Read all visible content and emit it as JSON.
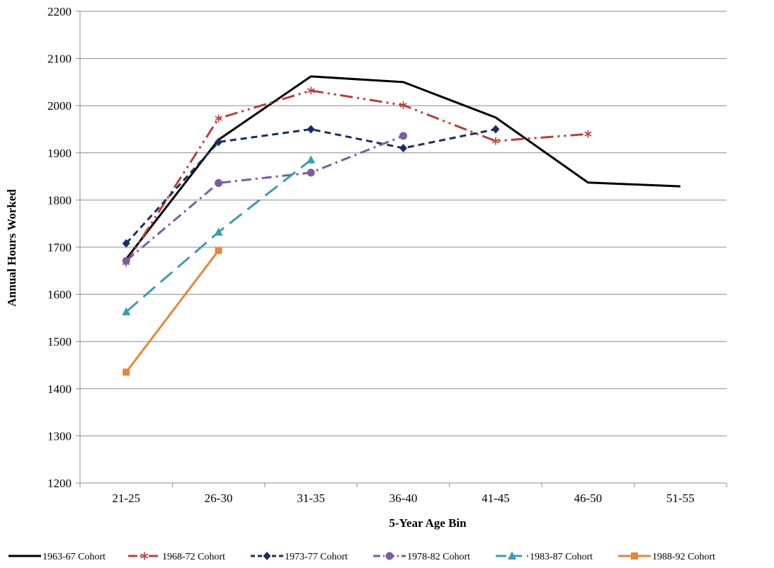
{
  "chart_data": {
    "type": "line",
    "title": "",
    "xlabel": "5-Year Age Bin",
    "ylabel": "Annual Hours Worked",
    "categories": [
      "21-25",
      "26-30",
      "31-35",
      "36-40",
      "41-45",
      "46-50",
      "51-55"
    ],
    "ylim": [
      1200,
      2200
    ],
    "yticks": [
      1200,
      1300,
      1400,
      1500,
      1600,
      1700,
      1800,
      1900,
      2000,
      2100,
      2200
    ],
    "grid": "horizontal",
    "legend_position": "bottom",
    "series": [
      {
        "name": "1963-67 Cohort",
        "values": [
          1675,
          1928,
          2062,
          2050,
          1975,
          1837,
          1829
        ],
        "color": "#000000",
        "dash": "solid",
        "marker": "none"
      },
      {
        "name": "1968-72 Cohort",
        "values": [
          1667,
          1973,
          2032,
          2001,
          1925,
          1940,
          null
        ],
        "color": "#b5403d",
        "dash": "dashdotdot",
        "marker": "star"
      },
      {
        "name": "1973-77 Cohort",
        "values": [
          1708,
          1923,
          1950,
          1910,
          1950,
          null,
          null
        ],
        "color": "#1a2f5e",
        "dash": "dash",
        "marker": "diamond"
      },
      {
        "name": "1978-82 Cohort",
        "values": [
          1671,
          1836,
          1858,
          1936,
          null,
          null,
          null
        ],
        "color": "#7b5e9e",
        "dash": "dashdot",
        "marker": "circle"
      },
      {
        "name": "1983-87 Cohort",
        "values": [
          1563,
          1732,
          1885,
          null,
          null,
          null,
          null
        ],
        "color": "#3d9bb3",
        "dash": "longdash",
        "marker": "triangle"
      },
      {
        "name": "1988-92 Cohort",
        "values": [
          1435,
          1693,
          null,
          null,
          null,
          null,
          null
        ],
        "color": "#e6873a",
        "dash": "solid",
        "marker": "square"
      }
    ]
  }
}
